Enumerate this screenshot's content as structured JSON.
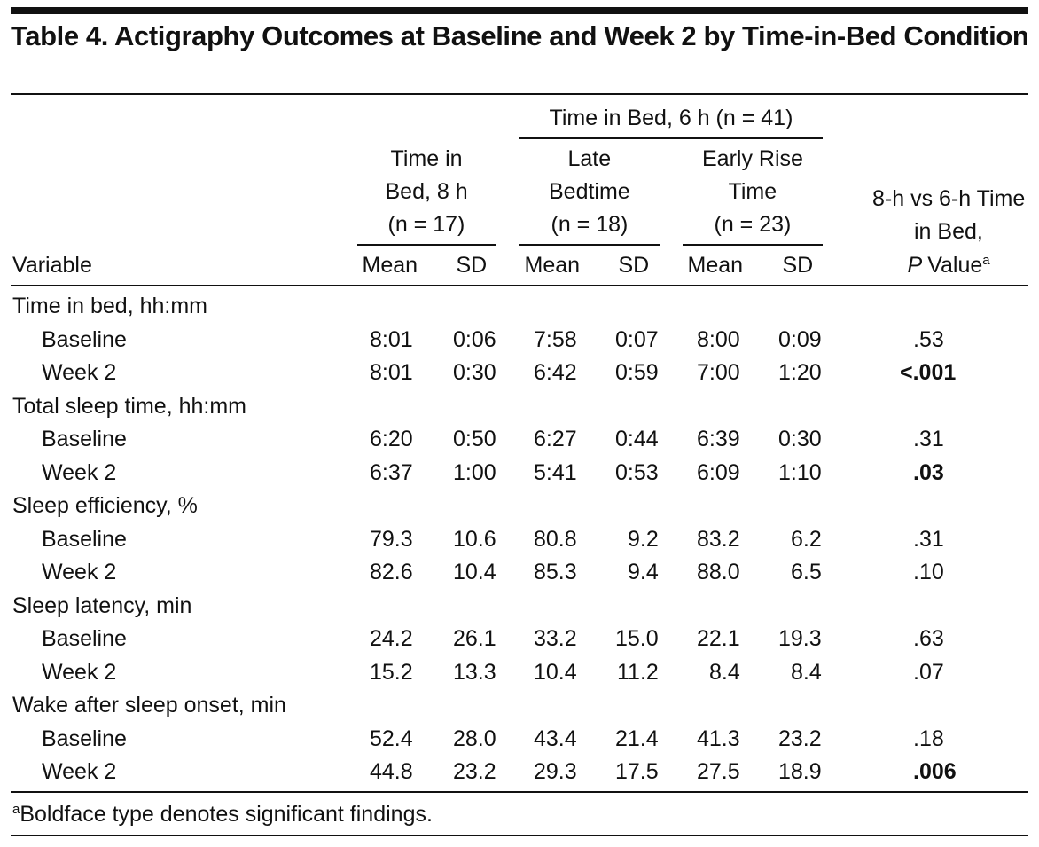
{
  "title": "Table 4. Actigraphy Outcomes at Baseline and Week 2 by Time-in-Bed Condition",
  "header": {
    "stub": "Variable",
    "spanner": "Time in Bed, 6 h (n = 41)",
    "groups": [
      {
        "lines": [
          "Time in",
          "Bed, 8 h",
          "(n = 17)"
        ],
        "stats": [
          "Mean",
          "SD"
        ]
      },
      {
        "lines": [
          "Late",
          "Bedtime",
          "(n = 18)"
        ],
        "stats": [
          "Mean",
          "SD"
        ]
      },
      {
        "lines": [
          "Early Rise",
          "Time",
          "(n = 23)"
        ],
        "stats": [
          "Mean",
          "SD"
        ]
      }
    ],
    "p_header": {
      "lines": [
        "8-h vs 6-h Time",
        "in Bed,"
      ],
      "italic": "P",
      "text": "Value",
      "note": "a"
    }
  },
  "sections": [
    {
      "label": "Time in bed, hh:mm",
      "rows": [
        {
          "label": "Baseline",
          "cells": [
            "8:01",
            "0:06",
            "7:58",
            "0:07",
            "8:00",
            "0:09"
          ],
          "p_value": ".53",
          "bold": false
        },
        {
          "label": "Week 2",
          "cells": [
            "8:01",
            "0:30",
            "6:42",
            "0:59",
            "7:00",
            "1:20"
          ],
          "p_value": "<.001",
          "bold": true
        }
      ]
    },
    {
      "label": "Total sleep time, hh:mm",
      "rows": [
        {
          "label": "Baseline",
          "cells": [
            "6:20",
            "0:50",
            "6:27",
            "0:44",
            "6:39",
            "0:30"
          ],
          "p_value": ".31",
          "bold": false
        },
        {
          "label": "Week 2",
          "cells": [
            "6:37",
            "1:00",
            "5:41",
            "0:53",
            "6:09",
            "1:10"
          ],
          "p_value": ".03",
          "bold": true
        }
      ]
    },
    {
      "label": "Sleep efficiency, %",
      "rows": [
        {
          "label": "Baseline",
          "cells": [
            "79.3",
            "10.6",
            "80.8",
            "9.2",
            "83.2",
            "6.2"
          ],
          "p_value": ".31",
          "bold": false
        },
        {
          "label": "Week 2",
          "cells": [
            "82.6",
            "10.4",
            "85.3",
            "9.4",
            "88.0",
            "6.5"
          ],
          "p_value": ".10",
          "bold": false
        }
      ]
    },
    {
      "label": "Sleep latency, min",
      "rows": [
        {
          "label": "Baseline",
          "cells": [
            "24.2",
            "26.1",
            "33.2",
            "15.0",
            "22.1",
            "19.3"
          ],
          "p_value": ".63",
          "bold": false
        },
        {
          "label": "Week 2",
          "cells": [
            "15.2",
            "13.3",
            "10.4",
            "11.2",
            "8.4",
            "8.4"
          ],
          "p_value": ".07",
          "bold": false
        }
      ]
    },
    {
      "label": "Wake after sleep onset, min",
      "rows": [
        {
          "label": "Baseline",
          "cells": [
            "52.4",
            "28.0",
            "43.4",
            "21.4",
            "41.3",
            "23.2"
          ],
          "p_value": ".18",
          "bold": false
        },
        {
          "label": "Week 2",
          "cells": [
            "44.8",
            "23.2",
            "29.3",
            "17.5",
            "27.5",
            "18.9"
          ],
          "p_value": ".006",
          "bold": true
        }
      ]
    }
  ],
  "footnote": {
    "note": "a",
    "text": "Boldface type denotes significant findings."
  }
}
